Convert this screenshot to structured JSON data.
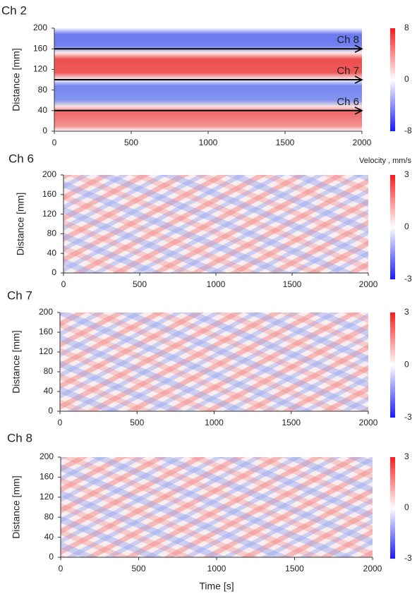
{
  "chart_data": [
    {
      "type": "heatmap",
      "title": "Ch 2",
      "y_label": "Distance [mm]",
      "colorbar_label": "Velocity , mm/s",
      "xlim": [
        0,
        2000
      ],
      "xticks": [
        0,
        500,
        1000,
        1500,
        2000
      ],
      "ylim": [
        0,
        200
      ],
      "yticks": [
        0,
        40,
        80,
        120,
        160,
        200
      ],
      "clim": [
        -8,
        8
      ],
      "cticks": [
        -8,
        0,
        8
      ],
      "annotations": [
        {
          "text": "Ch 8",
          "y": 160
        },
        {
          "text": "Ch 7",
          "y": 100
        },
        {
          "text": "Ch 6",
          "y": 40
        }
      ]
    },
    {
      "type": "heatmap",
      "title": "Ch 6",
      "y_label": "Distance [mm]",
      "xlim": [
        0,
        2000
      ],
      "xticks": [
        0,
        500,
        1000,
        1500,
        2000
      ],
      "ylim": [
        0,
        200
      ],
      "yticks": [
        0,
        40,
        80,
        120,
        160,
        200
      ],
      "clim": [
        -3,
        3
      ],
      "cticks": [
        -3,
        0,
        3
      ]
    },
    {
      "type": "heatmap",
      "title": "Ch 7",
      "y_label": "Distance [mm]",
      "xlim": [
        0,
        2000
      ],
      "xticks": [
        0,
        500,
        1000,
        1500,
        2000
      ],
      "ylim": [
        0,
        200
      ],
      "yticks": [
        0,
        40,
        80,
        120,
        160,
        200
      ],
      "clim": [
        -3,
        3
      ],
      "cticks": [
        -3,
        0,
        3
      ]
    },
    {
      "type": "heatmap",
      "title": "Ch 8",
      "y_label": "Distance [mm]",
      "x_label": "Time [s]",
      "xlim": [
        0,
        2000
      ],
      "xticks": [
        0,
        500,
        1000,
        1500,
        2000
      ],
      "ylim": [
        0,
        200
      ],
      "yticks": [
        0,
        40,
        80,
        120,
        160,
        200
      ],
      "clim": [
        -3,
        3
      ],
      "cticks": [
        -3,
        0,
        3
      ]
    }
  ]
}
